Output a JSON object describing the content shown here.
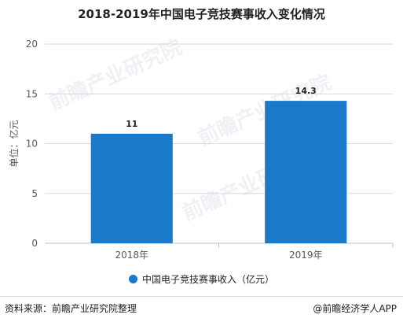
{
  "watermark_text": "前瞻产业研究院",
  "colors": {
    "bar": "#1a79c9",
    "axis_text": "#595959",
    "gridline": "#d9d9d9"
  },
  "chart_data": {
    "type": "bar",
    "title": "2018-2019年中国电子竞技赛事收入变化情况",
    "categories": [
      "2018年",
      "2019年"
    ],
    "series": [
      {
        "name": "中国电子竞技赛事收入（亿元）",
        "values": [
          11,
          14.3
        ],
        "data_labels": [
          "11",
          "14.3"
        ]
      }
    ],
    "xlabel": "",
    "ylabel": "单位：亿元",
    "ylim": [
      0,
      20
    ],
    "yticks": [
      "0",
      "5",
      "10",
      "15",
      "20"
    ],
    "grid": true,
    "legend_position": "bottom"
  },
  "footer": {
    "source": "资料来源：前瞻产业研究院整理",
    "brand": "@前瞻经济学人APP"
  }
}
